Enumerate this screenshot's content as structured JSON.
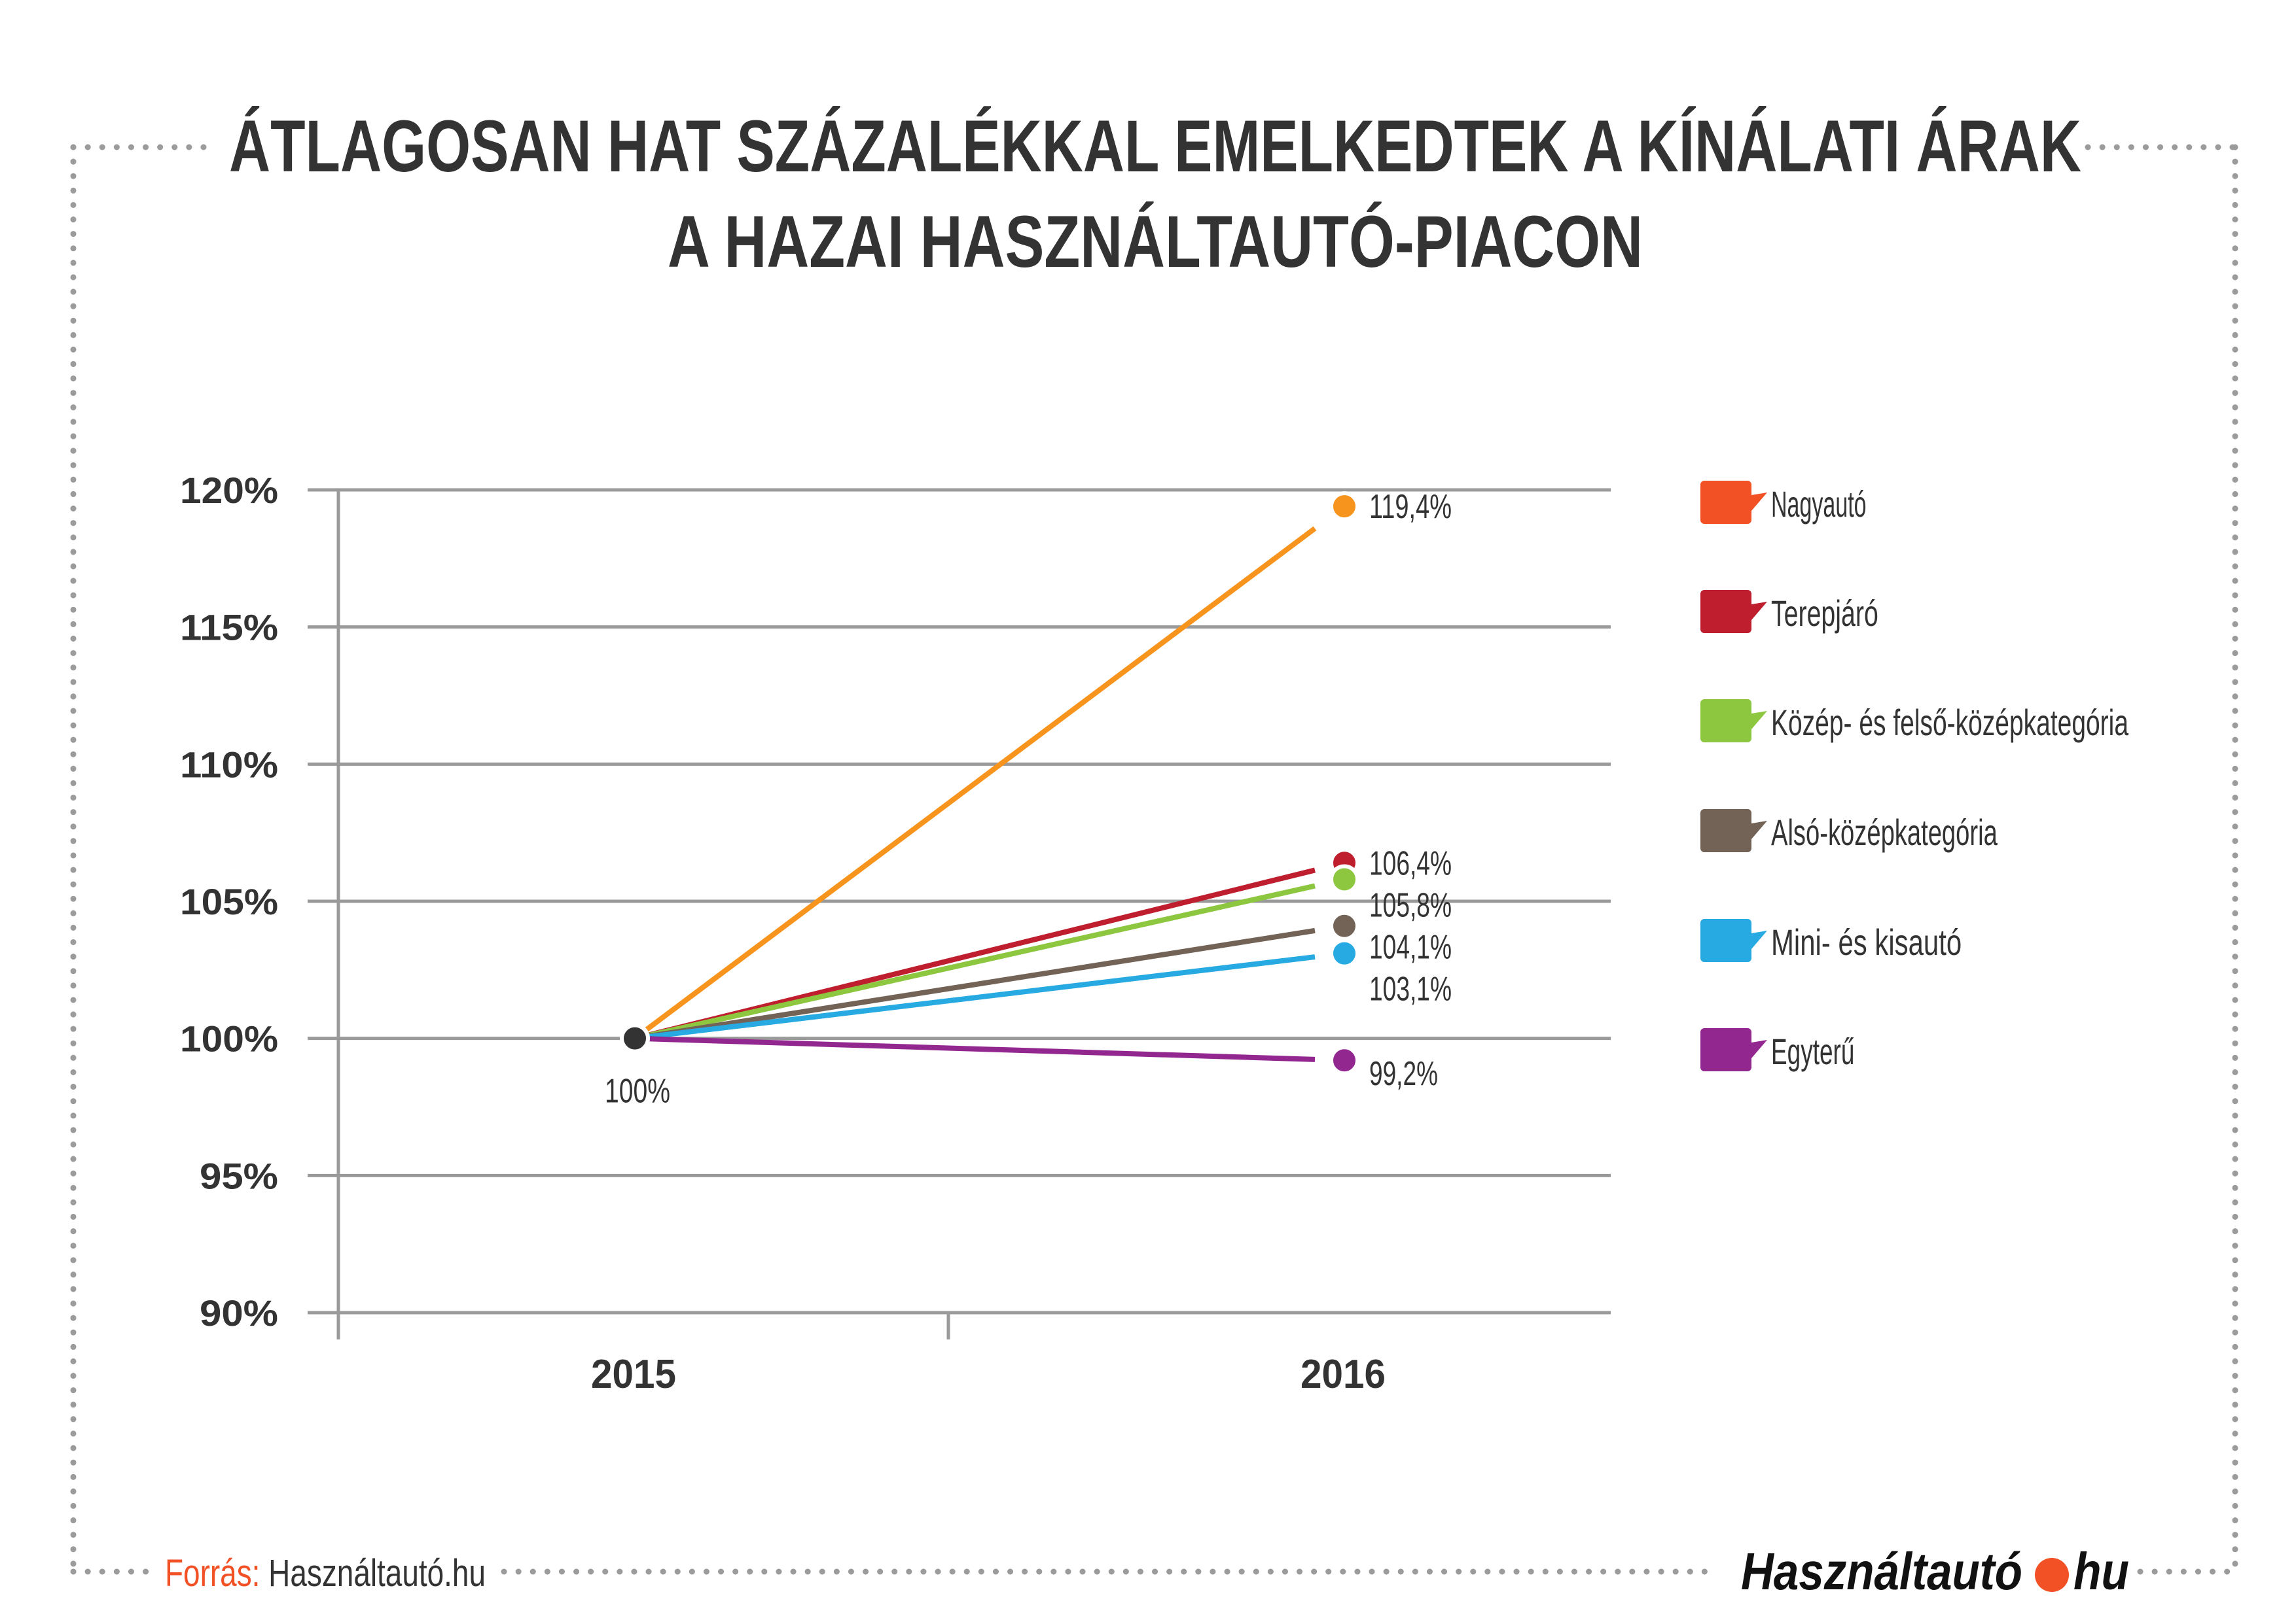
{
  "title": {
    "line1": "ÁTLAGOSAN HAT SZÁZALÉKKAL EMELKEDTEK A KÍNÁLATI ÁRAK",
    "line2": "A HAZAI HASZNÁLTAUTÓ-PIACON"
  },
  "chart_data": {
    "type": "line",
    "categories": [
      "2015",
      "2016"
    ],
    "ylim": [
      90,
      120
    ],
    "yticks": [
      90,
      95,
      100,
      105,
      110,
      115,
      120
    ],
    "ytick_labels": [
      "90%",
      "95%",
      "100%",
      "105%",
      "110%",
      "115%",
      "120%"
    ],
    "grid": true,
    "legend_position": "right",
    "start_label": "100%",
    "start_color": "#333333",
    "series": [
      {
        "name": "Nagyautó",
        "values": [
          100,
          119.4
        ],
        "label": "119,4%",
        "line_color": "#f7941d",
        "legend_color": "#f15124"
      },
      {
        "name": "Terepjáró",
        "values": [
          100,
          106.4
        ],
        "label": "106,4%",
        "line_color": "#be1e2d",
        "legend_color": "#be1e2d"
      },
      {
        "name": "Közép- és felső-középkategória",
        "values": [
          100,
          105.8
        ],
        "label": "105,8%",
        "line_color": "#8dc63f",
        "legend_color": "#8dc63f"
      },
      {
        "name": "Alsó-középkategória",
        "values": [
          100,
          104.1
        ],
        "label": "104,1%",
        "line_color": "#736357",
        "legend_color": "#736357"
      },
      {
        "name": "Mini- és kisautó",
        "values": [
          100,
          103.1
        ],
        "label": "103,1%",
        "line_color": "#27aae1",
        "legend_color": "#27aae1"
      },
      {
        "name": "Egyterű",
        "values": [
          100,
          99.2
        ],
        "label": "99,2%",
        "line_color": "#92278f",
        "legend_color": "#92278f"
      }
    ]
  },
  "footer": {
    "source_label": "Forrás:",
    "source_value": "Használtautó.hu",
    "source_label_color": "#f15124",
    "logo_text_left": "Használtautó",
    "logo_text_right": "hu",
    "logo_dot_color": "#f15124"
  }
}
